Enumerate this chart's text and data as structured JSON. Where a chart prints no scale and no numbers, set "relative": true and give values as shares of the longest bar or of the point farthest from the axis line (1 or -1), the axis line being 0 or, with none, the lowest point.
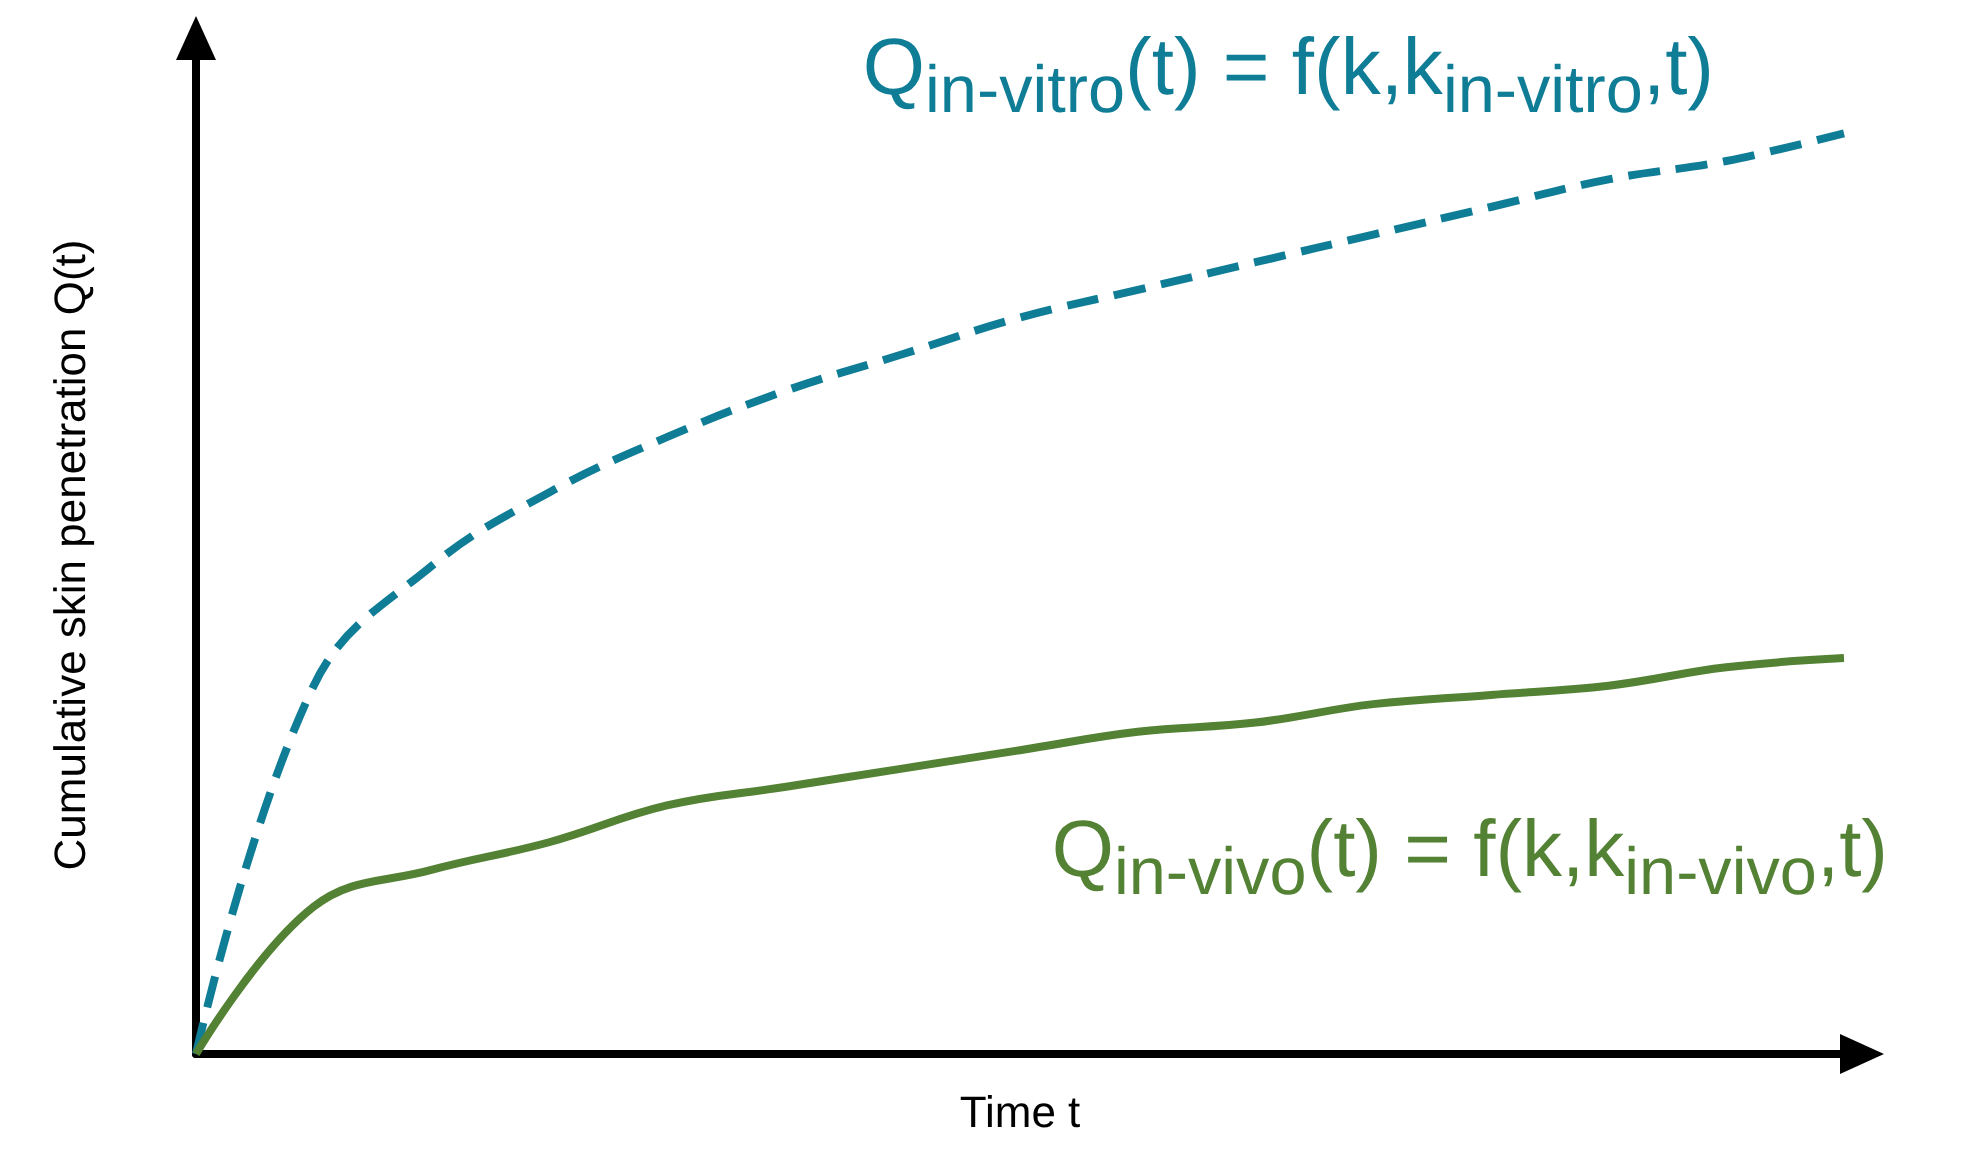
{
  "chart_data": {
    "type": "line",
    "relative": true,
    "xlabel": "Time t",
    "ylabel": "Cumulative skin penetration Q(t)",
    "legend": false,
    "grid": false,
    "marker": "none",
    "categories": [
      null,
      null,
      null,
      null,
      null,
      null,
      null,
      null,
      null,
      null,
      null,
      null,
      null,
      null,
      null
    ],
    "series": [
      {
        "name": "Q$_{in-vitro}$(t) = f(k,k$_{in-vitro}$,t)",
        "color": "#0f7d96",
        "line_style": "dashed",
        "values": [
          0,
          0.4,
          0.53,
          0.61,
          0.67,
          0.72,
          0.76,
          0.8,
          0.83,
          0.86,
          0.89,
          0.92,
          0.95,
          0.97,
          1.0
        ]
      },
      {
        "name": "Q$_{in-vivo}$(t) = f(k,k$_{in-vivo}$,t)",
        "color": "#548235",
        "line_style": "solid",
        "values": [
          0,
          0.16,
          0.2,
          0.23,
          0.27,
          0.29,
          0.31,
          0.33,
          0.35,
          0.36,
          0.38,
          0.39,
          0.4,
          0.42,
          0.43
        ]
      }
    ]
  }
}
